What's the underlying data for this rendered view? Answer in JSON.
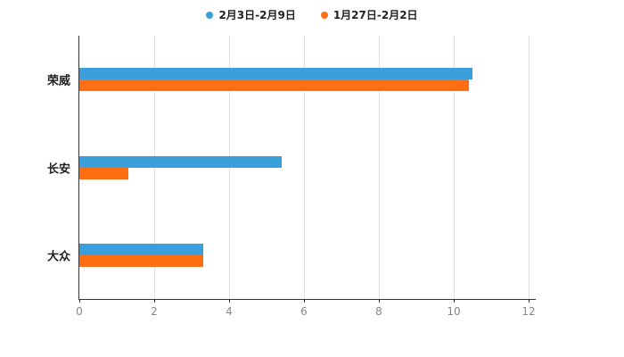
{
  "chart_data": {
    "type": "bar",
    "orientation": "horizontal",
    "title": "",
    "categories": [
      "荣威",
      "长安",
      "大众"
    ],
    "series": [
      {
        "name": "2月3日-2月9日",
        "color": "#3b9fdb",
        "values": [
          10.5,
          5.4,
          3.3
        ]
      },
      {
        "name": "1月27日-2月2日",
        "color": "#ff6e12",
        "values": [
          10.4,
          1.3,
          3.3
        ]
      }
    ],
    "xticks": [
      0,
      2,
      4,
      6,
      8,
      10,
      12
    ],
    "xlim": [
      0,
      12
    ],
    "grid": true,
    "legend_position": "top",
    "axis_color": "#333333",
    "gridline_color": "#e0e0e0",
    "tick_label_color": "#888888",
    "category_label_color": "#222222"
  }
}
